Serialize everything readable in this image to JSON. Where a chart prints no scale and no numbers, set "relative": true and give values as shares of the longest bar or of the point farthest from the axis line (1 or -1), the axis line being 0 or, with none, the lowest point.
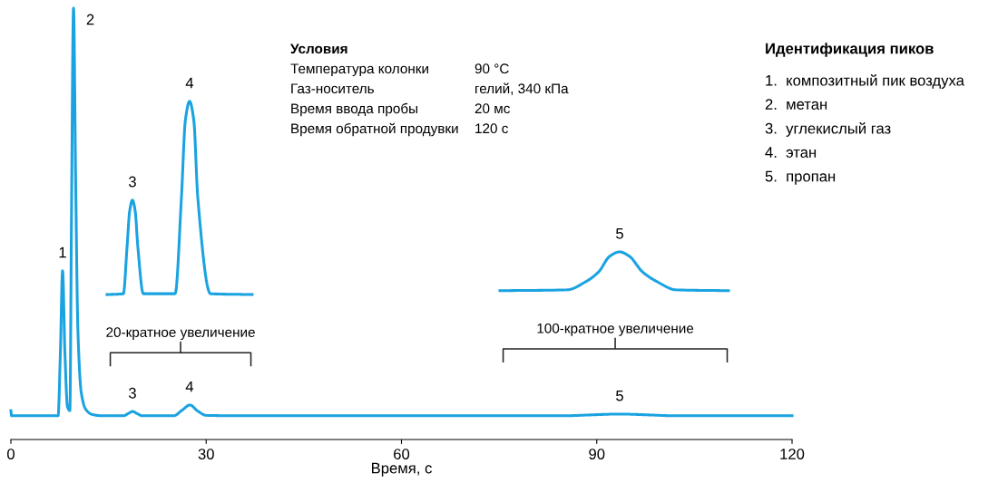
{
  "chart_data": {
    "type": "line",
    "relative": true,
    "xlabel": "Время, с",
    "xlim": [
      0,
      120
    ],
    "xticks": [
      0,
      30,
      60,
      90,
      120
    ],
    "grid": false,
    "legend": false,
    "marker": "none",
    "line_style": "solid",
    "series": [
      {
        "color": "#1aa3e0",
        "x": [
          0,
          0.1,
          7.25,
          7.6,
          7.94,
          8.3,
          8.7,
          9.06,
          9.3,
          9.62,
          9.95,
          10.3,
          10.8,
          11.5,
          12.5,
          14,
          17.3,
          18.0,
          18.7,
          19.4,
          20.2,
          25,
          26.3,
          27.5,
          28.7,
          30,
          35,
          85,
          89,
          93.5,
          98,
          102,
          120
        ],
        "values": [
          0.067,
          0.055,
          0.055,
          0.2,
          0.391,
          0.2,
          0.075,
          0.067,
          0.5,
          1.0,
          0.6,
          0.25,
          0.11,
          0.07,
          0.058,
          0.055,
          0.055,
          0.06,
          0.065,
          0.06,
          0.055,
          0.055,
          0.068,
          0.08,
          0.066,
          0.056,
          0.055,
          0.055,
          0.057,
          0.059,
          0.057,
          0.055,
          0.055
        ]
      },
      {
        "color": "#1aa3e0",
        "x": [
          14.77,
          17.28,
          17.84,
          18.25,
          18.67,
          19.09,
          19.51,
          20.35,
          25.23,
          26.2,
          26.8,
          27.45,
          28.1,
          28.71,
          30.66,
          37.07
        ],
        "values": [
          0.336,
          0.338,
          0.445,
          0.53,
          0.555,
          0.53,
          0.445,
          0.338,
          0.338,
          0.561,
          0.74,
          0.784,
          0.74,
          0.561,
          0.338,
          0.336
        ]
      },
      {
        "color": "#1aa3e0",
        "x": [
          75.12,
          85.44,
          88.22,
          90.31,
          92.0,
          93.52,
          95.0,
          97.0,
          99.37,
          102.16,
          110.24
        ],
        "values": [
          0.345,
          0.347,
          0.365,
          0.389,
          0.425,
          0.435,
          0.425,
          0.389,
          0.365,
          0.347,
          0.345
        ]
      }
    ],
    "annotations": [
      {
        "text": "1",
        "x": 7.94,
        "y": 0.391
      },
      {
        "text": "2",
        "x": 9.62,
        "y": 1.0
      },
      {
        "text": "3",
        "x": 18.67,
        "y": 0.065
      },
      {
        "text": "4",
        "x": 27.45,
        "y": 0.08
      },
      {
        "text": "5",
        "x": 93.52,
        "y": 0.059
      },
      {
        "text": "3",
        "x": 18.67,
        "y": 0.555
      },
      {
        "text": "4",
        "x": 27.45,
        "y": 0.784
      },
      {
        "text": "5",
        "x": 93.52,
        "y": 0.435
      },
      "20-кратное увеличение",
      "100-кратное увеличение",
      "Условия",
      "Температура колонки",
      "90 °C",
      "Газ-носитель",
      "гелий, 340 кПа",
      "Время ввода пробы",
      "20 мс",
      "Время обратной продувки",
      "120 с",
      "Идентификация пиков",
      "1.  композитный пик воздуха",
      "2.  метан",
      "3.  углекислый газ",
      "4.  этан",
      "5.  пропан"
    ]
  }
}
